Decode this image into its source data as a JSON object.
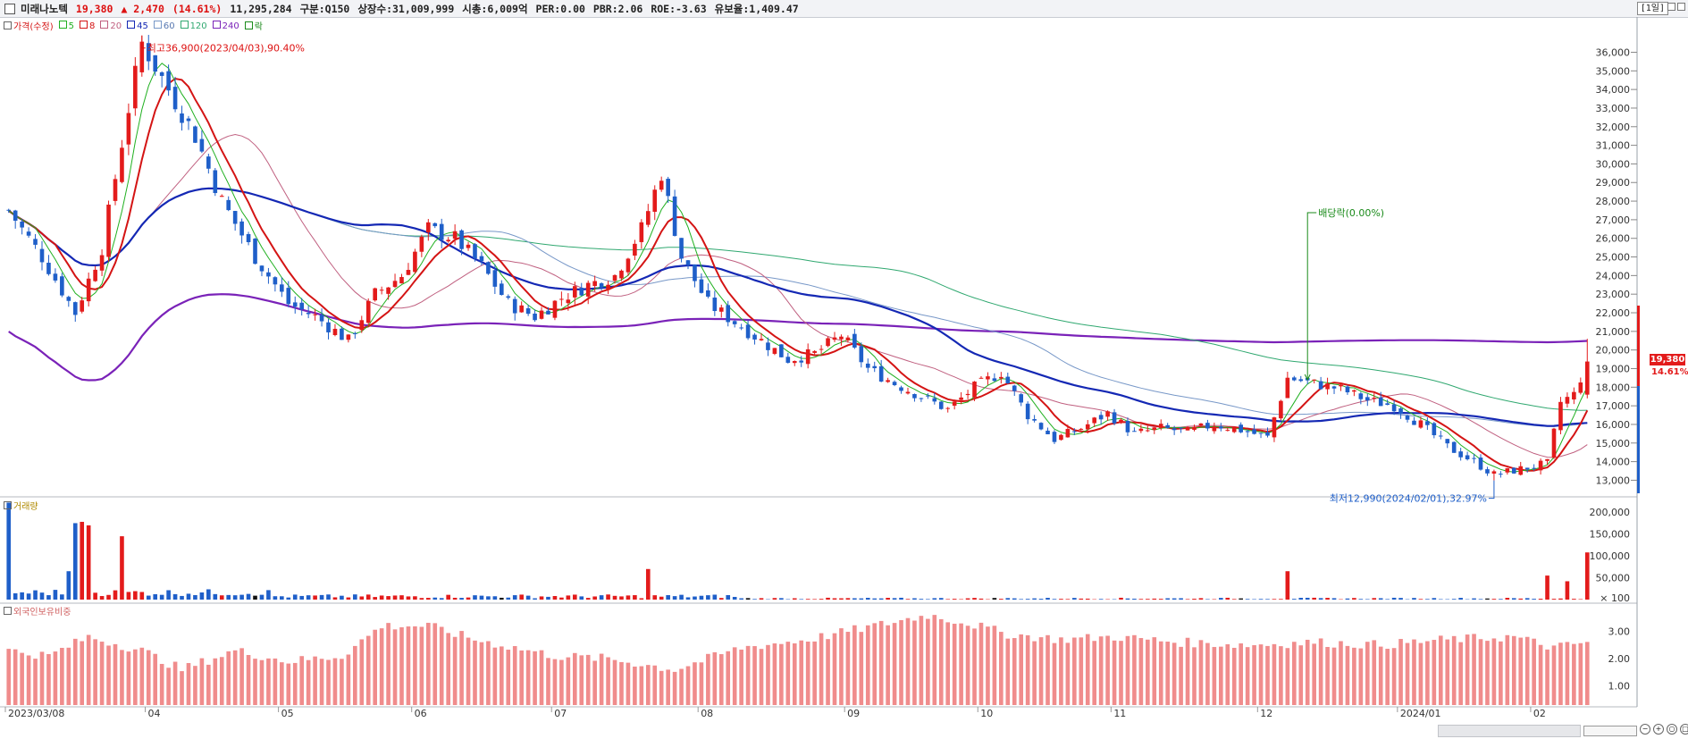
{
  "header": {
    "name": "미래나노텍",
    "price": "19,380",
    "change": "▲ 2,470",
    "change_pct": "(14.61%)",
    "volume": "11,295,284",
    "market": "구분:Q150",
    "shares": "상장수:31,009,999",
    "mcap": "시총:6,009억",
    "per": "PER:0.00",
    "pbr": "PBR:2.06",
    "roe": "ROE:-3.63",
    "retention": "유보율:1,409.47",
    "period": "[1일]"
  },
  "legend": {
    "price": "가격(수정)",
    "ma5": "5",
    "ma8": "8",
    "ma20": "20",
    "ma45": "45",
    "ma60": "60",
    "ma120": "120",
    "ma240": "240",
    "ex": "락"
  },
  "panels": {
    "volume_title": "거래량",
    "foreign_title": "외국인보유비중"
  },
  "annotations": {
    "high": "최고36,900(2023/04/03),90.40%",
    "low": "최저12,990(2024/02/01),32.97%",
    "dividend": "배당락(0.00%)"
  },
  "price_badge": {
    "price": "19,380",
    "pct": "14.61%"
  },
  "colors": {
    "up": "#e31b1b",
    "down": "#1f5fc9",
    "ma5": "#20b020",
    "ma8": "#d41414",
    "ma20": "#c06080",
    "ma45": "#1428b4",
    "ma60": "#7898c8",
    "ma120": "#30a870",
    "ma240": "#7a22b8",
    "foreign_bar": "#f08c8c"
  },
  "chart_data": [
    {
      "type": "candlestick",
      "series": [
        {
          "name": "가격(수정)"
        }
      ],
      "x_ticks": [
        "2023/03/08",
        "04",
        "05",
        "06",
        "07",
        "08",
        "09",
        "10",
        "11",
        "12",
        "2024/01",
        "02"
      ],
      "y_ticks": [
        "13,000",
        "14,000",
        "15,000",
        "16,000",
        "17,000",
        "18,000",
        "19,000",
        "20,000",
        "21,000",
        "22,000",
        "23,000",
        "24,000",
        "25,000",
        "26,000",
        "27,000",
        "28,000",
        "29,000",
        "30,000",
        "31,000",
        "32,000",
        "33,000",
        "34,000",
        "35,000",
        "36,000"
      ],
      "ylim": [
        12300,
        37800
      ],
      "last_close": 19380,
      "high": 36900,
      "low": 12990,
      "ohlc_keypoints": [
        [
          0,
          27500
        ],
        [
          5,
          25000
        ],
        [
          10,
          22000
        ],
        [
          14,
          25500
        ],
        [
          18,
          33000
        ],
        [
          20,
          36500
        ],
        [
          24,
          34000
        ],
        [
          28,
          31500
        ],
        [
          32,
          28000
        ],
        [
          37,
          25000
        ],
        [
          42,
          22500
        ],
        [
          46,
          21800
        ],
        [
          51,
          20500
        ],
        [
          55,
          23000
        ],
        [
          59,
          24000
        ],
        [
          63,
          26500
        ],
        [
          67,
          26000
        ],
        [
          71,
          24500
        ],
        [
          75,
          22500
        ],
        [
          79,
          21800
        ],
        [
          83,
          22800
        ],
        [
          87,
          23500
        ],
        [
          91,
          24000
        ],
        [
          95,
          26500
        ],
        [
          98,
          29500
        ],
        [
          101,
          25000
        ],
        [
          105,
          22500
        ],
        [
          109,
          21500
        ],
        [
          113,
          20500
        ],
        [
          117,
          19500
        ],
        [
          121,
          19800
        ],
        [
          125,
          20800
        ],
        [
          129,
          19000
        ],
        [
          133,
          18200
        ],
        [
          137,
          17500
        ],
        [
          141,
          16800
        ],
        [
          145,
          18000
        ],
        [
          149,
          18800
        ],
        [
          153,
          16500
        ],
        [
          157,
          15200
        ],
        [
          161,
          15800
        ],
        [
          165,
          16600
        ],
        [
          169,
          15500
        ],
        [
          173,
          15800
        ],
        [
          177,
          15600
        ],
        [
          181,
          16000
        ],
        [
          185,
          15700
        ],
        [
          189,
          15300
        ],
        [
          192,
          18500
        ],
        [
          196,
          18200
        ],
        [
          200,
          17900
        ],
        [
          204,
          17300
        ],
        [
          208,
          17000
        ],
        [
          212,
          16000
        ],
        [
          216,
          14800
        ],
        [
          220,
          14000
        ],
        [
          223,
          13300
        ],
        [
          227,
          13600
        ],
        [
          231,
          13900
        ],
        [
          233,
          17200
        ],
        [
          235,
          17600
        ],
        [
          237,
          19380
        ]
      ]
    },
    {
      "type": "bar",
      "series": [
        {
          "name": "거래량"
        }
      ],
      "y_ticks": [
        "× 100",
        "50,000",
        "100,000",
        "150,000",
        "200,000"
      ],
      "ylim": [
        0,
        225000
      ],
      "spikes": [
        [
          0,
          222000
        ],
        [
          9,
          65000
        ],
        [
          10,
          175000
        ],
        [
          11,
          178000
        ],
        [
          12,
          170000
        ],
        [
          17,
          145000
        ],
        [
          96,
          70000
        ],
        [
          192,
          65000
        ],
        [
          231,
          55000
        ],
        [
          234,
          42000
        ],
        [
          237,
          108000
        ]
      ]
    },
    {
      "type": "bar",
      "series": [
        {
          "name": "외국인보유비중"
        }
      ],
      "y_ticks": [
        "1.00",
        "2.00",
        "3.00"
      ],
      "ylim": [
        0.3,
        3.9
      ],
      "profile": [
        [
          0,
          2.3
        ],
        [
          6,
          2.1
        ],
        [
          12,
          2.8
        ],
        [
          20,
          2.3
        ],
        [
          26,
          1.6
        ],
        [
          34,
          2.3
        ],
        [
          42,
          1.9
        ],
        [
          50,
          2.1
        ],
        [
          56,
          3.2
        ],
        [
          63,
          3.2
        ],
        [
          70,
          2.7
        ],
        [
          76,
          2.4
        ],
        [
          82,
          2.1
        ],
        [
          90,
          2.0
        ],
        [
          100,
          1.6
        ],
        [
          110,
          2.4
        ],
        [
          120,
          2.7
        ],
        [
          126,
          3.0
        ],
        [
          132,
          3.3
        ],
        [
          138,
          3.6
        ],
        [
          144,
          3.3
        ],
        [
          150,
          2.9
        ],
        [
          158,
          2.7
        ],
        [
          166,
          2.8
        ],
        [
          176,
          2.6
        ],
        [
          186,
          2.5
        ],
        [
          196,
          2.6
        ],
        [
          206,
          2.5
        ],
        [
          216,
          2.7
        ],
        [
          226,
          2.8
        ],
        [
          232,
          2.4
        ],
        [
          237,
          2.6
        ]
      ]
    }
  ]
}
